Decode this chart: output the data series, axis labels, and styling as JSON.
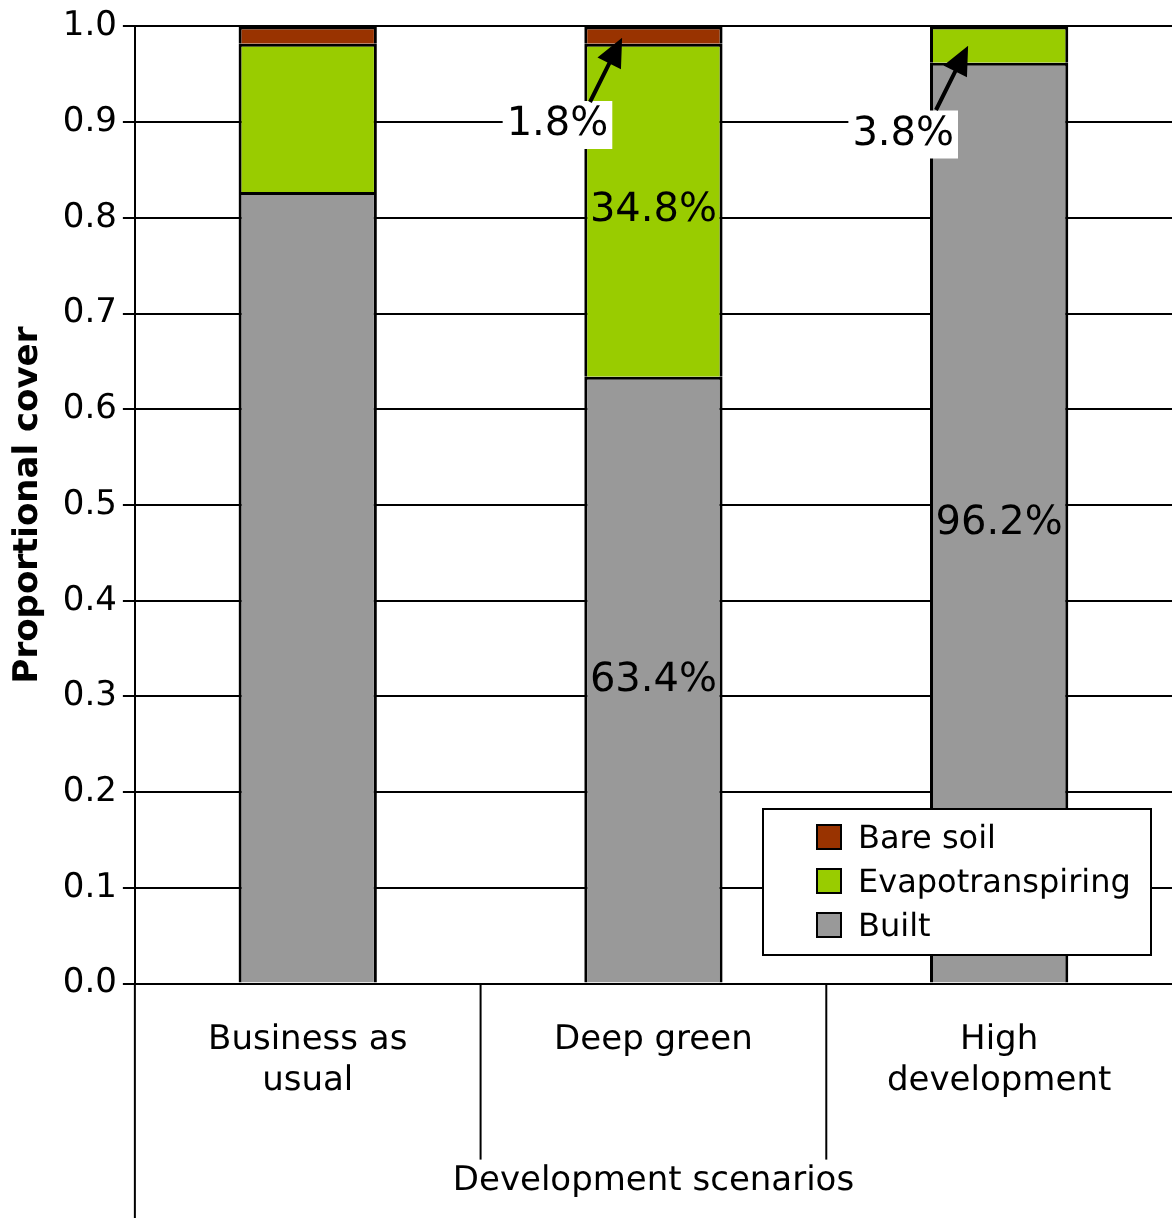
{
  "chart_data": {
    "type": "bar",
    "stacked": true,
    "xlabel": "Development scenarios",
    "ylabel": "Proportional cover",
    "categories": [
      "Business as usual",
      "Deep green",
      "High development"
    ],
    "series": [
      {
        "name": "Built",
        "color": "#999999",
        "values": [
          0.827,
          0.634,
          0.962
        ],
        "value_labels": [
          null,
          "63.4%",
          "96.2%"
        ]
      },
      {
        "name": "Evapotranspiring",
        "color": "#99cc00",
        "values": [
          0.155,
          0.348,
          0.038
        ],
        "value_labels": [
          null,
          "34.8%",
          "3.8%"
        ]
      },
      {
        "name": "Bare soil",
        "color": "#993300",
        "values": [
          0.018,
          0.018,
          0
        ],
        "value_labels": [
          null,
          "1.8%",
          null
        ]
      }
    ],
    "ylim": [
      0,
      1
    ],
    "yticks": [
      {
        "value": 0,
        "label": "0.0"
      },
      0.1,
      0.2,
      0.3,
      0.4,
      0.5,
      0.6,
      0.7,
      0.8,
      0.9,
      {
        "value": 1,
        "label": "1.0"
      }
    ],
    "grid": "y",
    "legend": "bottom right"
  }
}
